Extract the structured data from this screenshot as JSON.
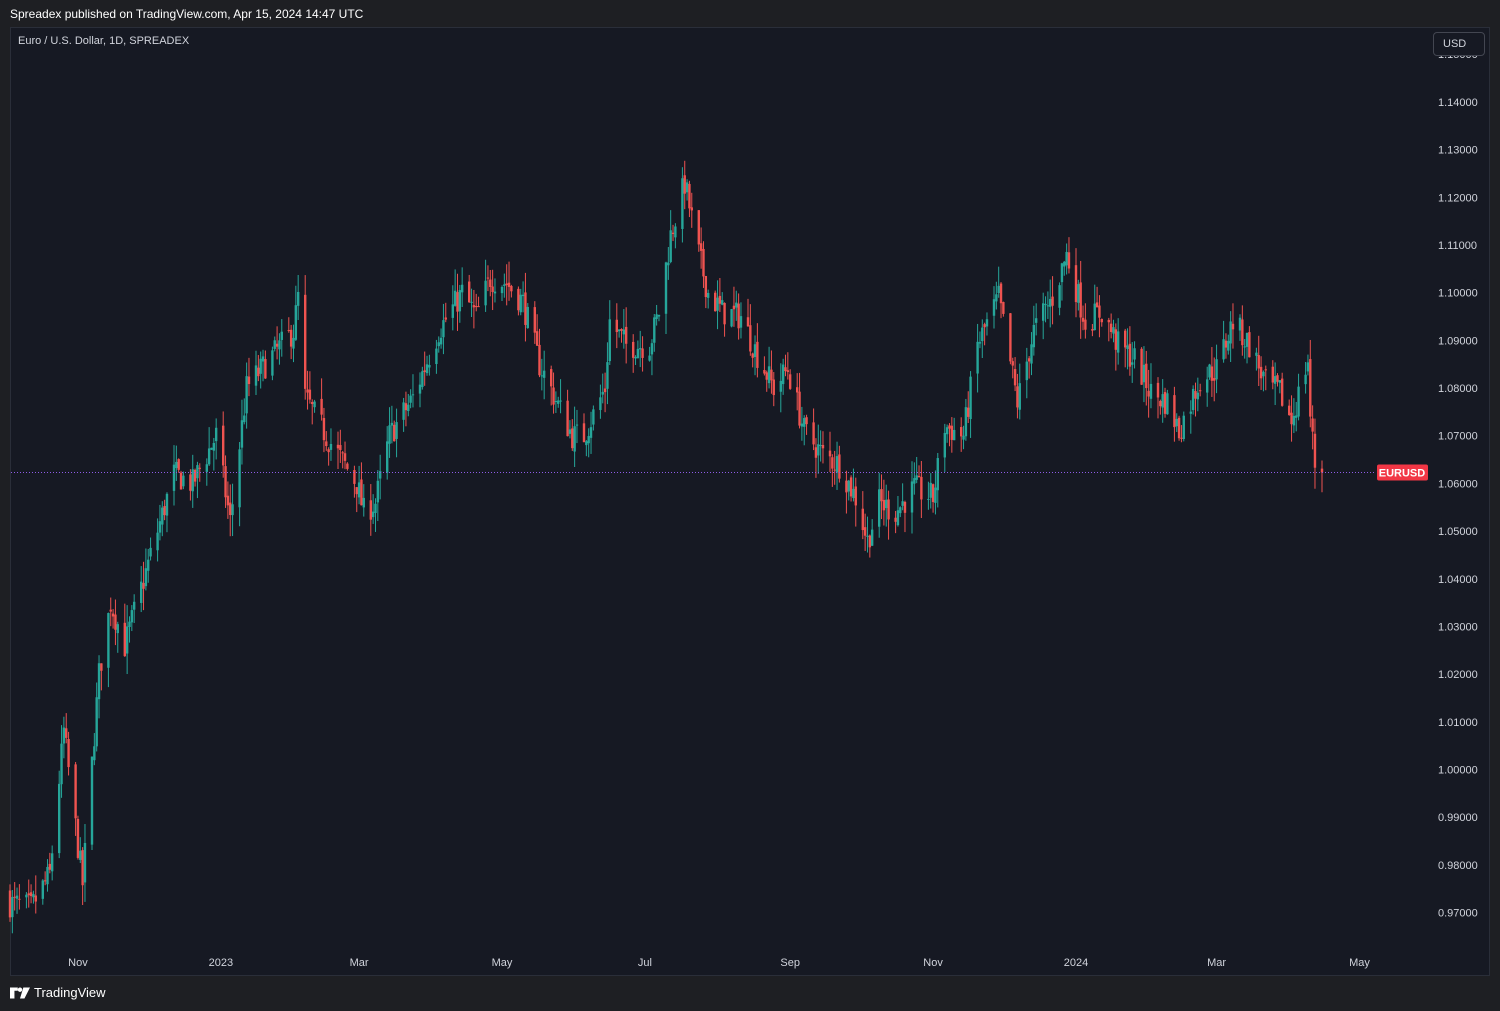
{
  "header": {
    "published_text": "Spreadex published on TradingView.com, Apr 15, 2024 14:47 UTC"
  },
  "chart_header": {
    "symbol_title": "Euro / U.S. Dollar, 1D, SPREADEX",
    "currency_button": "USD"
  },
  "footer": {
    "brand": "TradingView"
  },
  "colors": {
    "up": "#26a69a",
    "down": "#ef5350",
    "price_label_bg": "#f23645",
    "price_line": "#8e5ce6",
    "background": "#161923"
  },
  "chart_data": {
    "type": "candlestick",
    "symbol": "EURUSD",
    "timeframe": "1D",
    "ylim": [
      0.963,
      1.1555
    ],
    "y_ticks": [
      "1.15000",
      "1.14000",
      "1.13000",
      "1.12000",
      "1.11000",
      "1.10000",
      "1.09000",
      "1.08000",
      "1.07000",
      "1.06000",
      "1.05000",
      "1.04000",
      "1.03000",
      "1.02000",
      "1.01000",
      "1.00000",
      "0.99000",
      "0.98000",
      "0.97000"
    ],
    "x_ticks": [
      {
        "label": "Nov",
        "date": "2022-11-01"
      },
      {
        "label": "2023",
        "date": "2023-01-01"
      },
      {
        "label": "Mar",
        "date": "2023-03-01"
      },
      {
        "label": "May",
        "date": "2023-05-01"
      },
      {
        "label": "Jul",
        "date": "2023-07-01"
      },
      {
        "label": "Sep",
        "date": "2023-09-01"
      },
      {
        "label": "Nov",
        "date": "2023-11-01"
      },
      {
        "label": "2024",
        "date": "2024-01-01"
      },
      {
        "label": "Mar",
        "date": "2024-03-01"
      },
      {
        "label": "May",
        "date": "2024-05-01"
      }
    ],
    "date_range": [
      "2022-10-03",
      "2024-04-15"
    ],
    "last_price": 1.0623,
    "last_price_label": "EURUSD",
    "grid": false,
    "close_path": [
      {
        "date": "2022-10-03",
        "close": 0.972
      },
      {
        "date": "2022-10-12",
        "close": 0.971
      },
      {
        "date": "2022-10-20",
        "close": 0.978
      },
      {
        "date": "2022-10-26",
        "close": 1.008
      },
      {
        "date": "2022-11-03",
        "close": 0.976
      },
      {
        "date": "2022-11-10",
        "close": 1.02
      },
      {
        "date": "2022-11-15",
        "close": 1.035
      },
      {
        "date": "2022-11-21",
        "close": 1.026
      },
      {
        "date": "2022-11-28",
        "close": 1.038
      },
      {
        "date": "2022-12-05",
        "close": 1.05
      },
      {
        "date": "2022-12-12",
        "close": 1.062
      },
      {
        "date": "2022-12-20",
        "close": 1.06
      },
      {
        "date": "2022-12-30",
        "close": 1.07
      },
      {
        "date": "2023-01-05",
        "close": 1.052
      },
      {
        "date": "2023-01-12",
        "close": 1.08
      },
      {
        "date": "2023-01-20",
        "close": 1.085
      },
      {
        "date": "2023-02-01",
        "close": 1.092
      },
      {
        "date": "2023-02-03",
        "close": 1.099
      },
      {
        "date": "2023-02-06",
        "close": 1.078
      },
      {
        "date": "2023-02-15",
        "close": 1.07
      },
      {
        "date": "2023-02-28",
        "close": 1.06
      },
      {
        "date": "2023-03-03",
        "close": 1.054
      },
      {
        "date": "2023-03-08",
        "close": 1.056
      },
      {
        "date": "2023-03-14",
        "close": 1.07
      },
      {
        "date": "2023-03-24",
        "close": 1.078
      },
      {
        "date": "2023-04-04",
        "close": 1.092
      },
      {
        "date": "2023-04-14",
        "close": 1.1
      },
      {
        "date": "2023-04-20",
        "close": 1.095
      },
      {
        "date": "2023-04-26",
        "close": 1.103
      },
      {
        "date": "2023-05-03",
        "close": 1.102
      },
      {
        "date": "2023-05-10",
        "close": 1.098
      },
      {
        "date": "2023-05-17",
        "close": 1.085
      },
      {
        "date": "2023-05-31",
        "close": 1.07
      },
      {
        "date": "2023-06-05",
        "close": 1.07
      },
      {
        "date": "2023-06-14",
        "close": 1.08
      },
      {
        "date": "2023-06-16",
        "close": 1.094
      },
      {
        "date": "2023-06-23",
        "close": 1.089
      },
      {
        "date": "2023-07-03",
        "close": 1.089
      },
      {
        "date": "2023-07-07",
        "close": 1.096
      },
      {
        "date": "2023-07-12",
        "close": 1.112
      },
      {
        "date": "2023-07-18",
        "close": 1.123
      },
      {
        "date": "2023-07-24",
        "close": 1.108
      },
      {
        "date": "2023-07-28",
        "close": 1.1
      },
      {
        "date": "2023-08-03",
        "close": 1.096
      },
      {
        "date": "2023-08-11",
        "close": 1.095
      },
      {
        "date": "2023-08-18",
        "close": 1.087
      },
      {
        "date": "2023-08-25",
        "close": 1.08
      },
      {
        "date": "2023-08-31",
        "close": 1.084
      },
      {
        "date": "2023-09-07",
        "close": 1.071
      },
      {
        "date": "2023-09-15",
        "close": 1.066
      },
      {
        "date": "2023-09-22",
        "close": 1.064
      },
      {
        "date": "2023-09-29",
        "close": 1.057
      },
      {
        "date": "2023-10-04",
        "close": 1.048
      },
      {
        "date": "2023-10-09",
        "close": 1.056
      },
      {
        "date": "2023-10-16",
        "close": 1.054
      },
      {
        "date": "2023-10-24",
        "close": 1.059
      },
      {
        "date": "2023-11-01",
        "close": 1.057
      },
      {
        "date": "2023-11-06",
        "close": 1.072
      },
      {
        "date": "2023-11-14",
        "close": 1.07
      },
      {
        "date": "2023-11-20",
        "close": 1.089
      },
      {
        "date": "2023-11-29",
        "close": 1.099
      },
      {
        "date": "2023-12-07",
        "close": 1.077
      },
      {
        "date": "2023-12-14",
        "close": 1.092
      },
      {
        "date": "2023-12-22",
        "close": 1.099
      },
      {
        "date": "2023-12-28",
        "close": 1.108
      },
      {
        "date": "2024-01-05",
        "close": 1.094
      },
      {
        "date": "2024-01-12",
        "close": 1.096
      },
      {
        "date": "2024-01-19",
        "close": 1.089
      },
      {
        "date": "2024-01-26",
        "close": 1.086
      },
      {
        "date": "2024-02-02",
        "close": 1.079
      },
      {
        "date": "2024-02-09",
        "close": 1.077
      },
      {
        "date": "2024-02-14",
        "close": 1.071
      },
      {
        "date": "2024-02-23",
        "close": 1.082
      },
      {
        "date": "2024-03-01",
        "close": 1.084
      },
      {
        "date": "2024-03-08",
        "close": 1.094
      },
      {
        "date": "2024-03-15",
        "close": 1.089
      },
      {
        "date": "2024-03-22",
        "close": 1.081
      },
      {
        "date": "2024-03-28",
        "close": 1.079
      },
      {
        "date": "2024-04-02",
        "close": 1.073
      },
      {
        "date": "2024-04-09",
        "close": 1.086
      },
      {
        "date": "2024-04-10",
        "close": 1.074
      },
      {
        "date": "2024-04-12",
        "close": 1.064
      },
      {
        "date": "2024-04-15",
        "close": 1.0623
      }
    ]
  }
}
